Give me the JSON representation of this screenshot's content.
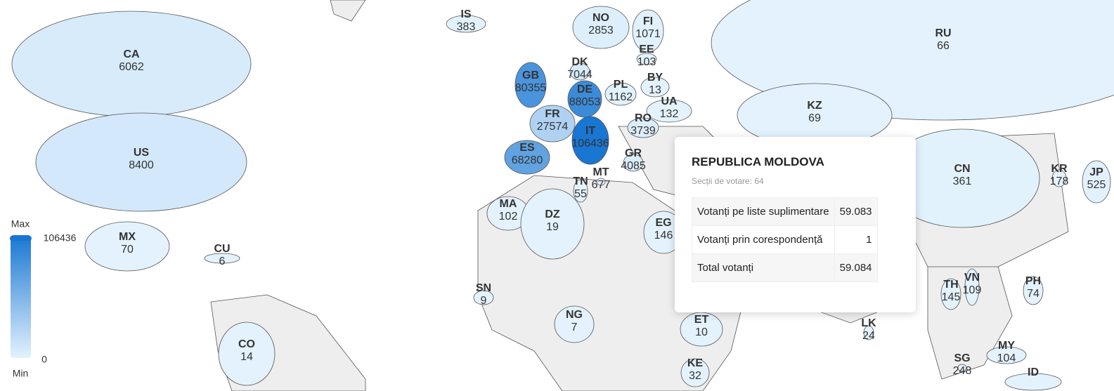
{
  "legend": {
    "max_label": "Max",
    "min_label": "Min",
    "max": 106436,
    "min": 0
  },
  "countries": [
    {
      "code": "RU",
      "value": 66
    },
    {
      "code": "CA",
      "value": 6062
    },
    {
      "code": "US",
      "value": 8400
    },
    {
      "code": "CN",
      "value": 361
    },
    {
      "code": "KZ",
      "value": 69
    },
    {
      "code": "IS",
      "value": 383
    },
    {
      "code": "NO",
      "value": 2853
    },
    {
      "code": "FI",
      "value": 1071
    },
    {
      "code": "EE",
      "value": 103
    },
    {
      "code": "DK",
      "value": 7044
    },
    {
      "code": "BY",
      "value": 13
    },
    {
      "code": "GB",
      "value": 80355
    },
    {
      "code": "PL",
      "value": 1162
    },
    {
      "code": "DE",
      "value": 88053
    },
    {
      "code": "UA",
      "value": 132
    },
    {
      "code": "FR",
      "value": 27574
    },
    {
      "code": "RO",
      "value": 3739
    },
    {
      "code": "IT",
      "value": 106436
    },
    {
      "code": "ES",
      "value": 68280
    },
    {
      "code": "GR",
      "value": 4085
    },
    {
      "code": "MT",
      "value": 677
    },
    {
      "code": "TN",
      "value": 55
    },
    {
      "code": "KR",
      "value": 178
    },
    {
      "code": "JP",
      "value": 525
    },
    {
      "code": "MA",
      "value": 102
    },
    {
      "code": "DZ",
      "value": 19
    },
    {
      "code": "EG",
      "value": 146
    },
    {
      "code": "MX",
      "value": 70
    },
    {
      "code": "CU",
      "value": 6
    },
    {
      "code": "SN",
      "value": 9
    },
    {
      "code": "TH",
      "value": 145
    },
    {
      "code": "VN",
      "value": 109
    },
    {
      "code": "PH",
      "value": 74
    },
    {
      "code": "NG",
      "value": 7
    },
    {
      "code": "ET",
      "value": 10
    },
    {
      "code": "LK",
      "value": 24
    },
    {
      "code": "CO",
      "value": 14
    },
    {
      "code": "MY",
      "value": 104
    },
    {
      "code": "SG",
      "value": 248
    },
    {
      "code": "KE",
      "value": 32
    },
    {
      "code": "ID",
      "value": null
    }
  ],
  "tooltip": {
    "title": "REPUBLICA MOLDOVA",
    "subtitle": "Secții de votare: 64",
    "rows": [
      [
        "Votanți pe liste suplimentare",
        "59.083"
      ],
      [
        "Votanți prin corespondență",
        "1"
      ],
      [
        "Total votanți",
        "59.084"
      ]
    ]
  }
}
